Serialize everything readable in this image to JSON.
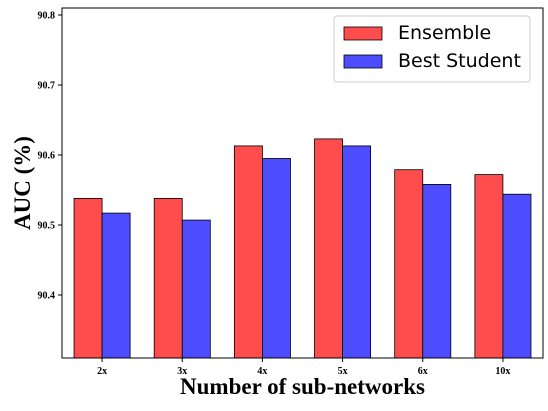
{
  "chart_data": {
    "type": "bar",
    "categories": [
      "2x",
      "3x",
      "4x",
      "5x",
      "6x",
      "10x"
    ],
    "series": [
      {
        "name": "Ensemble",
        "color": "#ff4d4d",
        "values": [
          90.538,
          90.538,
          90.613,
          90.623,
          90.579,
          90.572
        ]
      },
      {
        "name": "Best Student",
        "color": "#4d4dff",
        "values": [
          90.517,
          90.507,
          90.595,
          90.613,
          90.558,
          90.544
        ]
      }
    ],
    "xlabel": "Number of sub-networks",
    "ylabel": "AUC (%)",
    "ylim": [
      90.31,
      90.81
    ],
    "yticks": [
      "90.4",
      "90.5",
      "90.6",
      "90.7",
      "90.8"
    ],
    "legend_position": "top-right",
    "grid": false
  }
}
